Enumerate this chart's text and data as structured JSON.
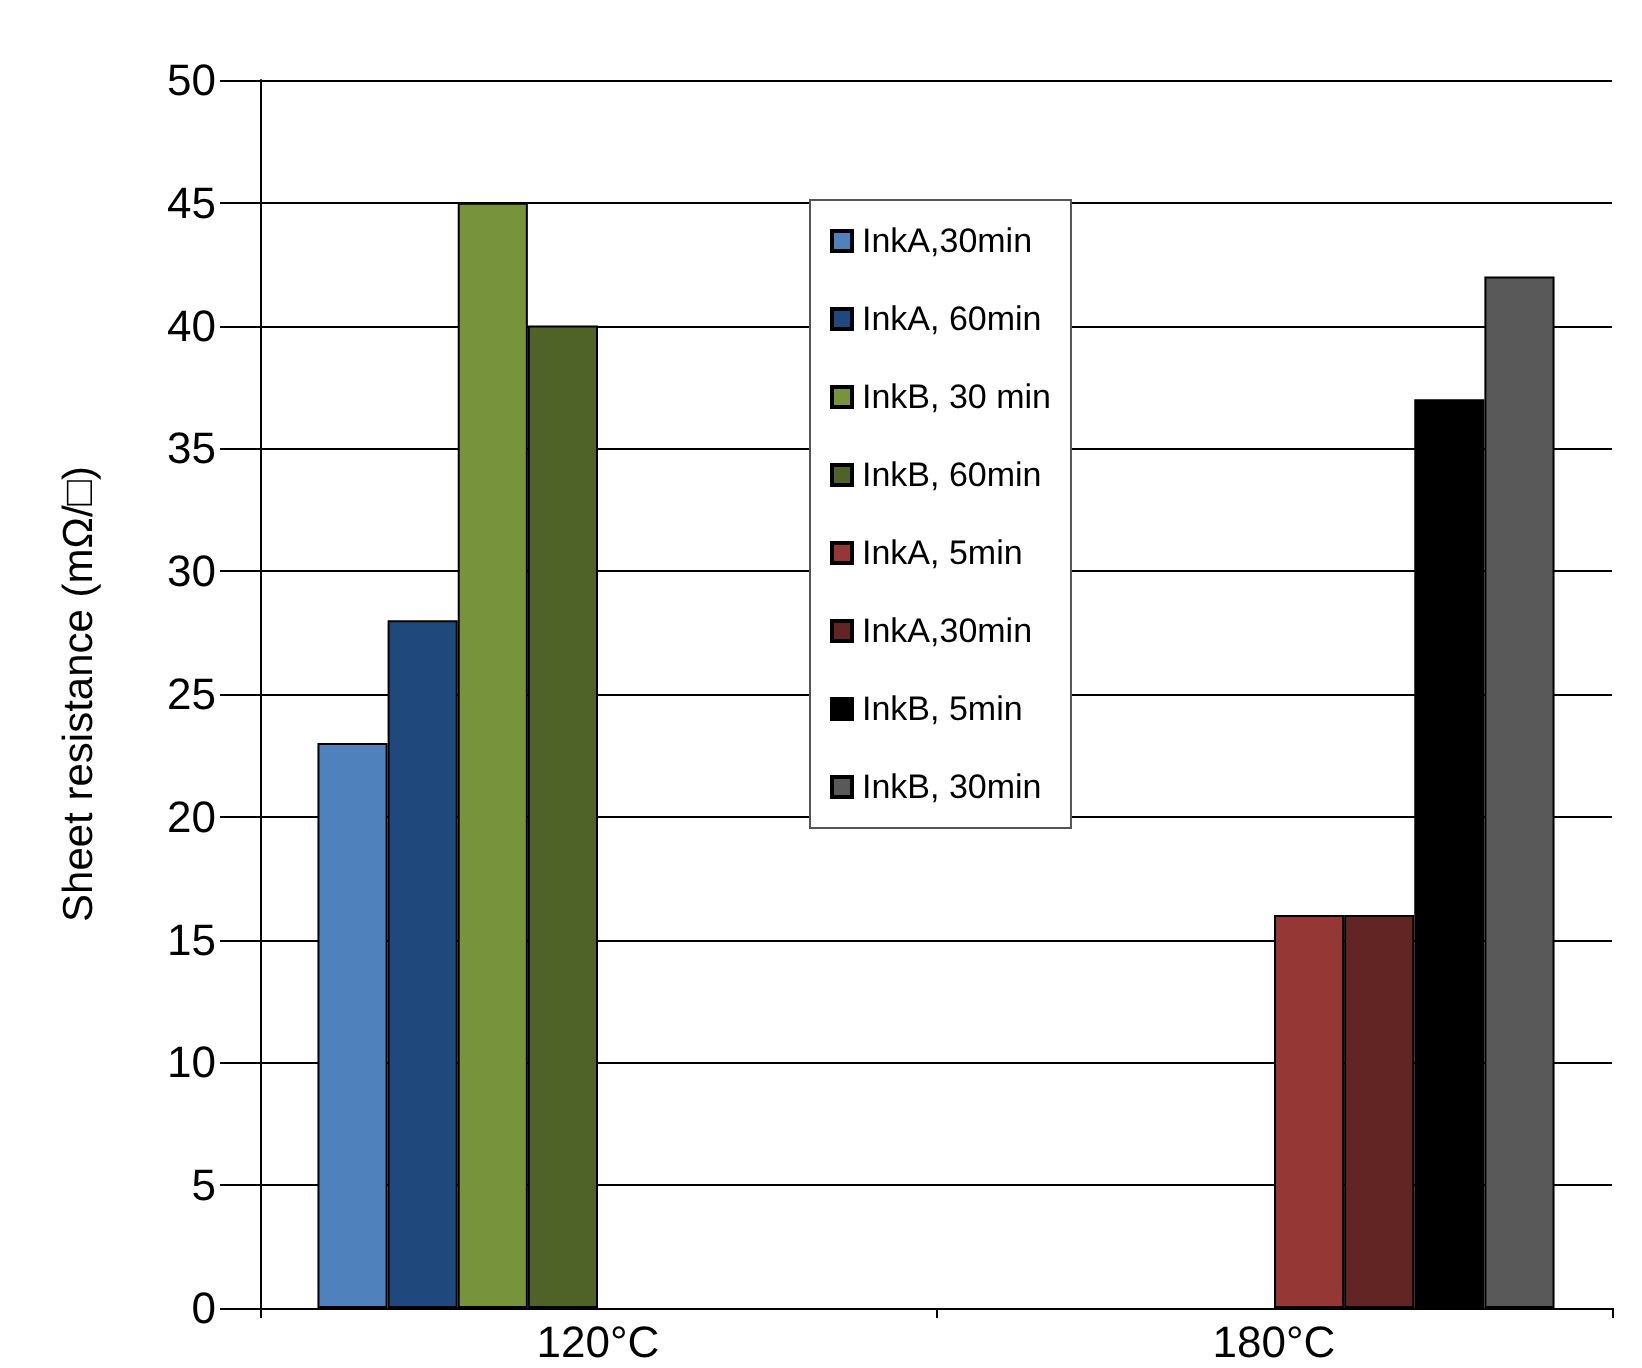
{
  "chart_data": {
    "type": "bar",
    "ylabel": "Sheet resistance (mΩ/□)",
    "categories": [
      "120°C",
      "180°C"
    ],
    "series": [
      {
        "name": "InkA,30min",
        "color": "#4f81bd",
        "values": [
          23,
          null
        ]
      },
      {
        "name": "InkA, 60min",
        "color": "#1f497d",
        "values": [
          28,
          null
        ]
      },
      {
        "name": "InkB, 30 min",
        "color": "#77933c",
        "values": [
          45,
          null
        ]
      },
      {
        "name": "InkB, 60min",
        "color": "#4f6228",
        "values": [
          40,
          null
        ]
      },
      {
        "name": "InkA, 5min",
        "color": "#953735",
        "values": [
          null,
          16
        ]
      },
      {
        "name": "InkA,30min",
        "color": "#632523",
        "values": [
          null,
          16
        ]
      },
      {
        "name": "InkB, 5min",
        "color": "#000000",
        "values": [
          null,
          37
        ]
      },
      {
        "name": "InkB, 30min",
        "color": "#595959",
        "values": [
          null,
          42
        ]
      }
    ],
    "ylim": [
      0,
      50
    ],
    "yticks": [
      0,
      5,
      10,
      15,
      20,
      25,
      30,
      35,
      40,
      45,
      50
    ],
    "grid": "y",
    "legend": "top"
  }
}
